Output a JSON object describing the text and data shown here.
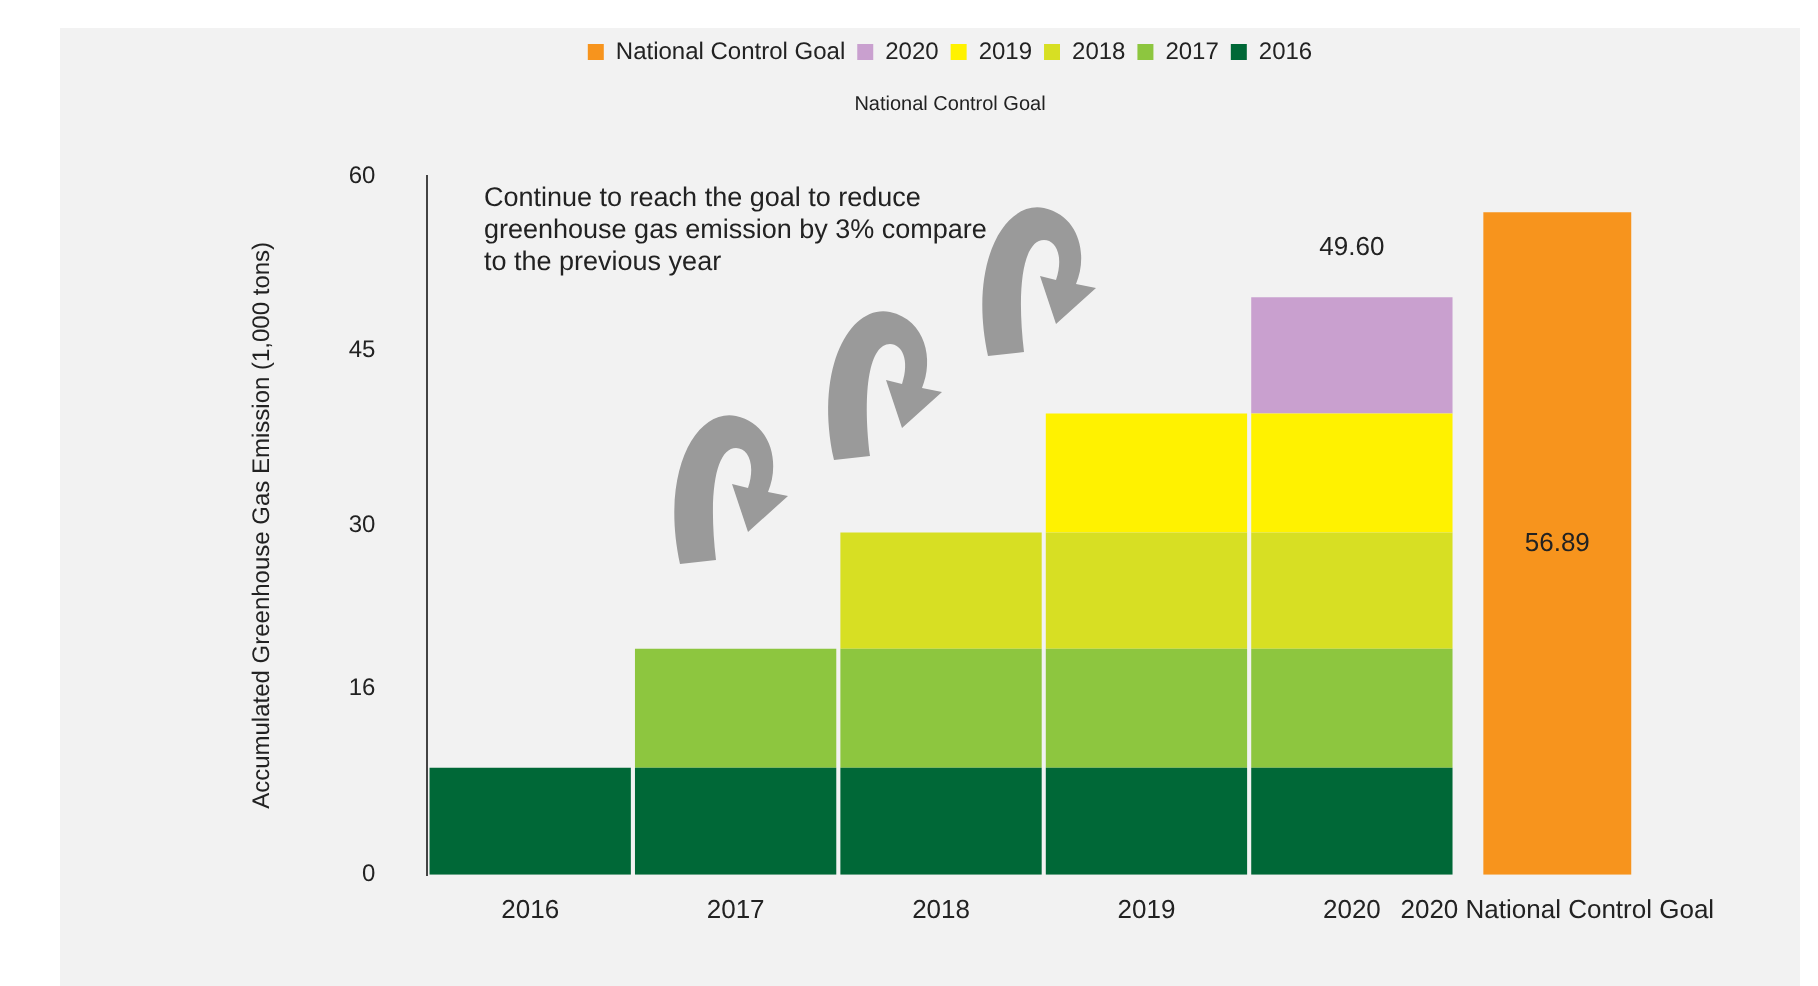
{
  "chart_data": {
    "type": "bar",
    "subtitle": "National Control Goal",
    "ylabel": "Accumulated Greenhouse Gas Emission (1,000 tons)",
    "categories": [
      "2016",
      "2017",
      "2018",
      "2019",
      "2020",
      "2020 National Control Goal"
    ],
    "stacked": true,
    "legend": "top",
    "series": [
      {
        "name": "2016",
        "color": "#006837",
        "values": [
          9.2,
          9.2,
          9.2,
          9.2,
          9.2,
          null
        ]
      },
      {
        "name": "2017",
        "color": "#8dc63f",
        "values": [
          null,
          10.2,
          10.2,
          10.2,
          10.2,
          null
        ]
      },
      {
        "name": "2018",
        "color": "#d7df23",
        "values": [
          null,
          null,
          10,
          10,
          10,
          null
        ]
      },
      {
        "name": "2019",
        "color": "#fff200",
        "values": [
          null,
          null,
          null,
          10.2,
          10.2,
          null
        ]
      },
      {
        "name": "2020",
        "color": "#c9a0cf",
        "values": [
          null,
          null,
          null,
          null,
          10,
          null
        ]
      },
      {
        "name": "National Control Goal",
        "color": "#f7941d",
        "values": [
          null,
          null,
          null,
          null,
          null,
          56.89
        ],
        "value_labels": [
          null,
          null,
          null,
          null,
          null,
          "56.89"
        ]
      }
    ],
    "totals": [
      null,
      null,
      null,
      null,
      "49.60",
      null
    ],
    "ylim": [
      0,
      60
    ],
    "yticks": [
      0,
      16,
      30,
      45,
      60
    ],
    "annotations": [
      "Continue to reach the goal to reduce greenhouse gas emission by 3% compare to the previous year"
    ]
  }
}
